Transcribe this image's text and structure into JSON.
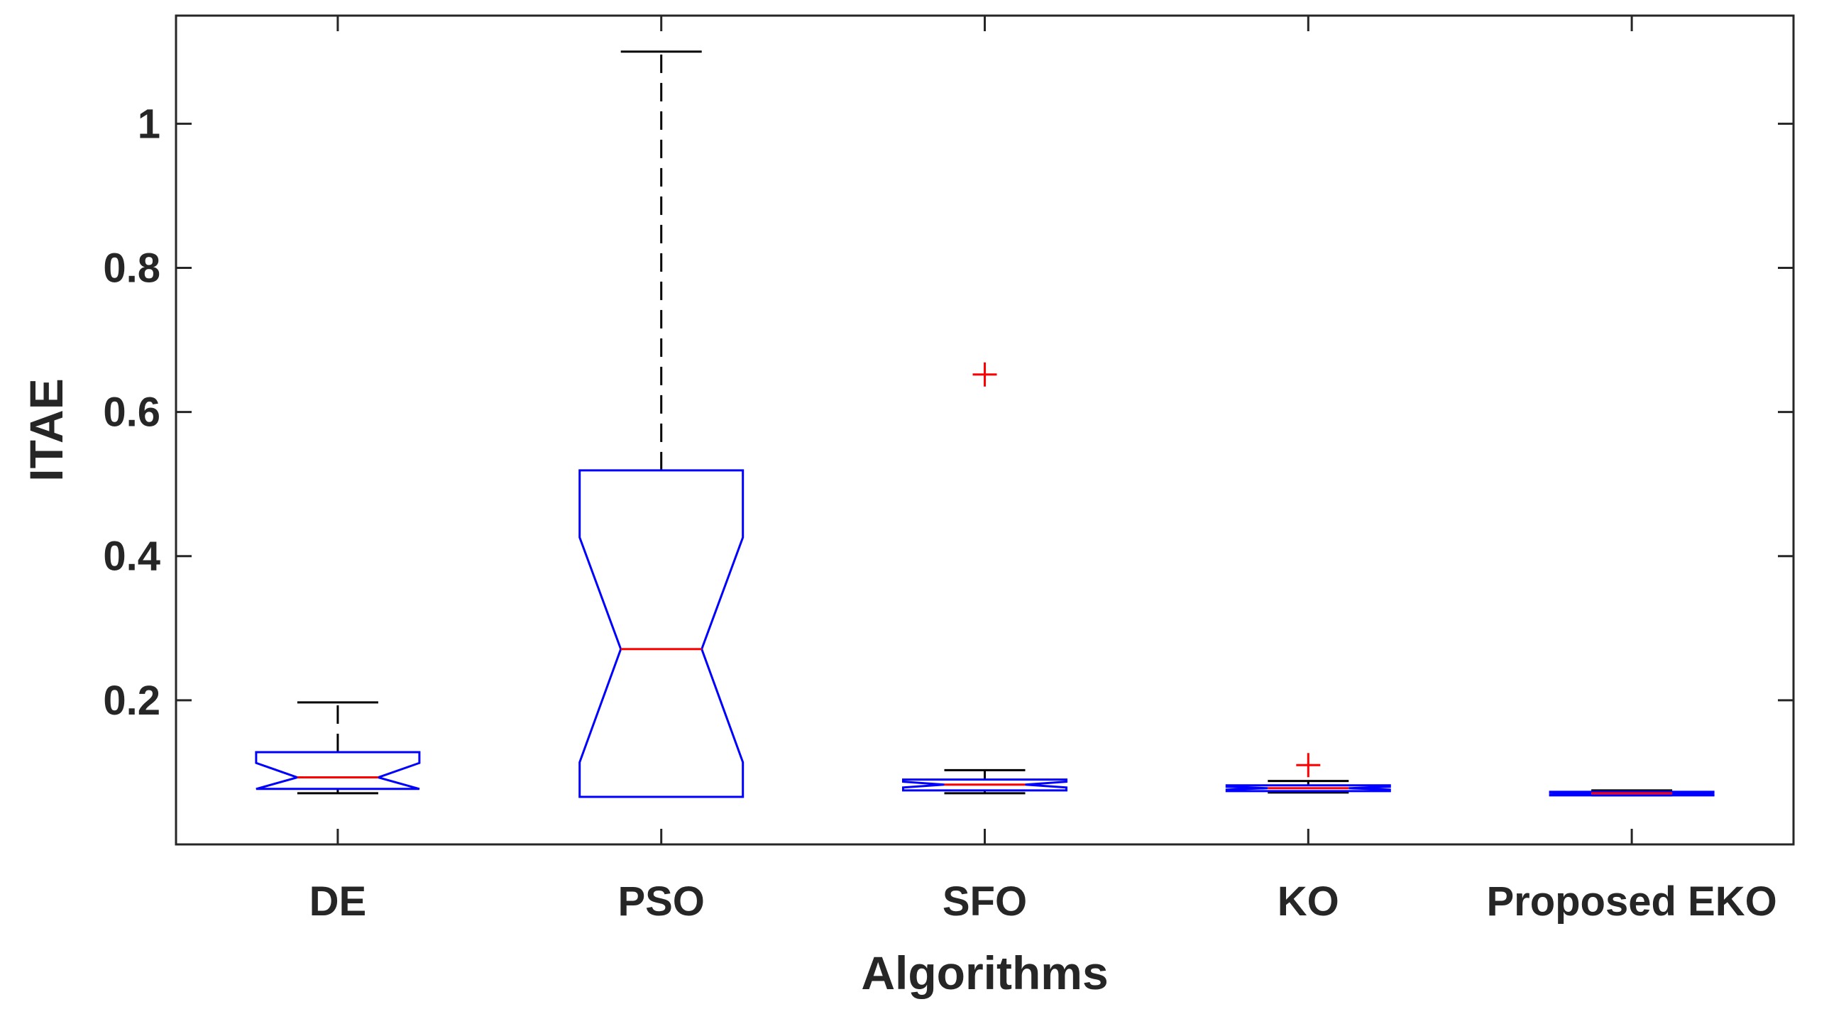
{
  "chart_data": {
    "type": "boxplot",
    "title": "",
    "xlabel": "Algorithms",
    "ylabel": "ITAE",
    "ylim": [
      0.0,
      1.15
    ],
    "yticks": [
      0.2,
      0.4,
      0.6,
      0.8,
      1.0
    ],
    "ytick_labels": [
      "0.2",
      "0.4",
      "0.6",
      "0.8",
      "1"
    ],
    "notched": true,
    "colors": {
      "box": "#0000ff",
      "median": "#ff0000",
      "whisker": "#000000",
      "outlier": "#ff0000",
      "axis": "#262626"
    },
    "series": [
      {
        "name": "DE",
        "whisker_low": 0.071,
        "q1": 0.077,
        "notch_low": 0.077,
        "median": 0.093,
        "notch_high": 0.113,
        "q3": 0.128,
        "whisker_high": 0.197,
        "outliers": []
      },
      {
        "name": "PSO",
        "whisker_low": 0.066,
        "q1": 0.066,
        "notch_low": 0.114,
        "median": 0.271,
        "notch_high": 0.426,
        "q3": 0.519,
        "whisker_high": 1.1,
        "outliers": []
      },
      {
        "name": "SFO",
        "whisker_low": 0.071,
        "q1": 0.075,
        "notch_low": 0.079,
        "median": 0.083,
        "notch_high": 0.087,
        "q3": 0.09,
        "whisker_high": 0.103,
        "outliers": [
          0.652
        ]
      },
      {
        "name": "KO",
        "whisker_low": 0.072,
        "q1": 0.074,
        "notch_low": 0.076,
        "median": 0.078,
        "notch_high": 0.08,
        "q3": 0.082,
        "whisker_high": 0.088,
        "outliers": [
          0.11
        ]
      },
      {
        "name": "Proposed EKO",
        "whisker_low": 0.068,
        "q1": 0.068,
        "notch_low": 0.069,
        "median": 0.071,
        "notch_high": 0.072,
        "q3": 0.073,
        "whisker_high": 0.075,
        "outliers": []
      }
    ]
  }
}
